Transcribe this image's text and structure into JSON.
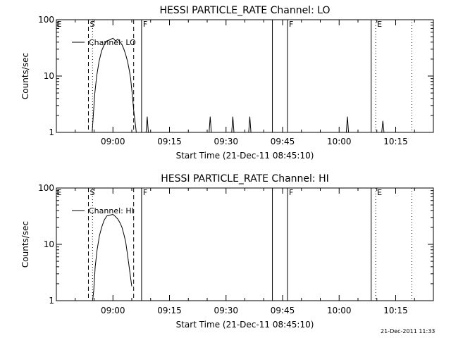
{
  "footer_timestamp": "21-Dec-2011 11:33",
  "chart_data": [
    {
      "type": "line",
      "title": "HESSI PARTICLE_RATE Channel: LO",
      "xlabel": "Start Time (21-Dec-11 08:45:10)",
      "ylabel": "Counts/sec",
      "yscale": "log",
      "ylim": [
        1,
        100
      ],
      "xlim_minutes_since_0845": [
        0,
        100
      ],
      "x_ticks": [
        {
          "label": "09:00",
          "t": 15
        },
        {
          "label": "09:15",
          "t": 30
        },
        {
          "label": "09:30",
          "t": 45
        },
        {
          "label": "09:45",
          "t": 60
        },
        {
          "label": "10:00",
          "t": 75
        },
        {
          "label": "10:15",
          "t": 90
        }
      ],
      "y_ticks": [
        {
          "label": "1",
          "v": 1
        },
        {
          "label": "10",
          "v": 10
        },
        {
          "label": "100",
          "v": 100
        }
      ],
      "legend": "Channel: LO",
      "series": [
        {
          "name": "Channel: LO",
          "points": [
            [
              9.5,
              1
            ],
            [
              9.8,
              2
            ],
            [
              10.2,
              5
            ],
            [
              10.7,
              10
            ],
            [
              11.3,
              18
            ],
            [
              12,
              28
            ],
            [
              12.7,
              36
            ],
            [
              13.4,
              42
            ],
            [
              14.2,
              44
            ],
            [
              15,
              47
            ],
            [
              15.7,
              42
            ],
            [
              16.3,
              45
            ],
            [
              16.9,
              40
            ],
            [
              17.4,
              36
            ],
            [
              17.9,
              30
            ],
            [
              18.4,
              24
            ],
            [
              18.9,
              18
            ],
            [
              19.3,
              13
            ],
            [
              19.7,
              9
            ],
            [
              20.1,
              5
            ],
            [
              20.5,
              2.5
            ],
            [
              20.9,
              1.5
            ],
            [
              21.2,
              1
            ]
          ]
        },
        {
          "name": "",
          "points": [
            [
              23.8,
              1
            ],
            [
              24.1,
              1.9
            ],
            [
              24.4,
              1
            ]
          ]
        },
        {
          "name": "",
          "points": [
            [
              40.5,
              1
            ],
            [
              40.8,
              1.9
            ],
            [
              41.1,
              1
            ]
          ]
        },
        {
          "name": "",
          "points": [
            [
              46.5,
              1
            ],
            [
              46.8,
              1.9
            ],
            [
              47.1,
              1
            ]
          ]
        },
        {
          "name": "",
          "points": [
            [
              51,
              1
            ],
            [
              51.3,
              1.9
            ],
            [
              51.6,
              1
            ]
          ]
        },
        {
          "name": "",
          "points": [
            [
              76.9,
              1
            ],
            [
              77.2,
              1.9
            ],
            [
              77.5,
              1
            ]
          ]
        },
        {
          "name": "",
          "points": [
            [
              86.3,
              1
            ],
            [
              86.6,
              1.6
            ],
            [
              86.9,
              1
            ]
          ]
        }
      ],
      "markers": [
        {
          "label": "E",
          "t": -0.3,
          "style": "none"
        },
        {
          "label": "S",
          "t": 8.5,
          "style": "dashed"
        },
        {
          "label": "",
          "t": 9.6,
          "style": "dotted"
        },
        {
          "label": "",
          "t": 20.5,
          "style": "dashed"
        },
        {
          "label": "F",
          "t": 22.6,
          "style": "solid"
        },
        {
          "label": "",
          "t": 57.3,
          "style": "solid"
        },
        {
          "label": "F",
          "t": 61.3,
          "style": "solid"
        },
        {
          "label": "",
          "t": 83.5,
          "style": "solid"
        },
        {
          "label": "E",
          "t": 84.7,
          "style": "dotted"
        },
        {
          "label": "",
          "t": 94.3,
          "style": "dotted"
        }
      ]
    },
    {
      "type": "line",
      "title": "HESSI PARTICLE_RATE Channel: HI",
      "xlabel": "Start Time (21-Dec-11 08:45:10)",
      "ylabel": "Counts/sec",
      "yscale": "log",
      "ylim": [
        1,
        100
      ],
      "xlim_minutes_since_0845": [
        0,
        100
      ],
      "x_ticks": [
        {
          "label": "09:00",
          "t": 15
        },
        {
          "label": "09:15",
          "t": 30
        },
        {
          "label": "09:30",
          "t": 45
        },
        {
          "label": "09:45",
          "t": 60
        },
        {
          "label": "10:00",
          "t": 75
        },
        {
          "label": "10:15",
          "t": 90
        }
      ],
      "y_ticks": [
        {
          "label": "1",
          "v": 1
        },
        {
          "label": "10",
          "v": 10
        },
        {
          "label": "100",
          "v": 100
        }
      ],
      "legend": "Channel: HI",
      "series": [
        {
          "name": "Channel: HI",
          "points": [
            [
              9.6,
              1
            ],
            [
              9.9,
              1.5
            ],
            [
              10.3,
              4
            ],
            [
              10.8,
              8
            ],
            [
              11.4,
              14
            ],
            [
              12,
              20
            ],
            [
              12.7,
              27
            ],
            [
              13.4,
              32
            ],
            [
              14.2,
              33
            ],
            [
              15,
              34
            ],
            [
              15.7,
              31
            ],
            [
              16.3,
              28
            ],
            [
              16.9,
              24
            ],
            [
              17.4,
              20
            ],
            [
              17.9,
              15
            ],
            [
              18.4,
              11
            ],
            [
              18.8,
              7
            ],
            [
              19.2,
              4.5
            ],
            [
              19.6,
              2.8
            ],
            [
              20,
              1.8
            ]
          ]
        }
      ],
      "markers": [
        {
          "label": "E",
          "t": -0.3,
          "style": "none"
        },
        {
          "label": "S",
          "t": 8.5,
          "style": "dashed"
        },
        {
          "label": "",
          "t": 9.6,
          "style": "dotted"
        },
        {
          "label": "",
          "t": 20.5,
          "style": "dashed"
        },
        {
          "label": "F",
          "t": 22.6,
          "style": "solid"
        },
        {
          "label": "",
          "t": 57.3,
          "style": "solid"
        },
        {
          "label": "F",
          "t": 61.3,
          "style": "solid"
        },
        {
          "label": "",
          "t": 83.5,
          "style": "solid"
        },
        {
          "label": "E",
          "t": 84.7,
          "style": "dotted"
        },
        {
          "label": "",
          "t": 94.3,
          "style": "dotted"
        }
      ]
    }
  ]
}
